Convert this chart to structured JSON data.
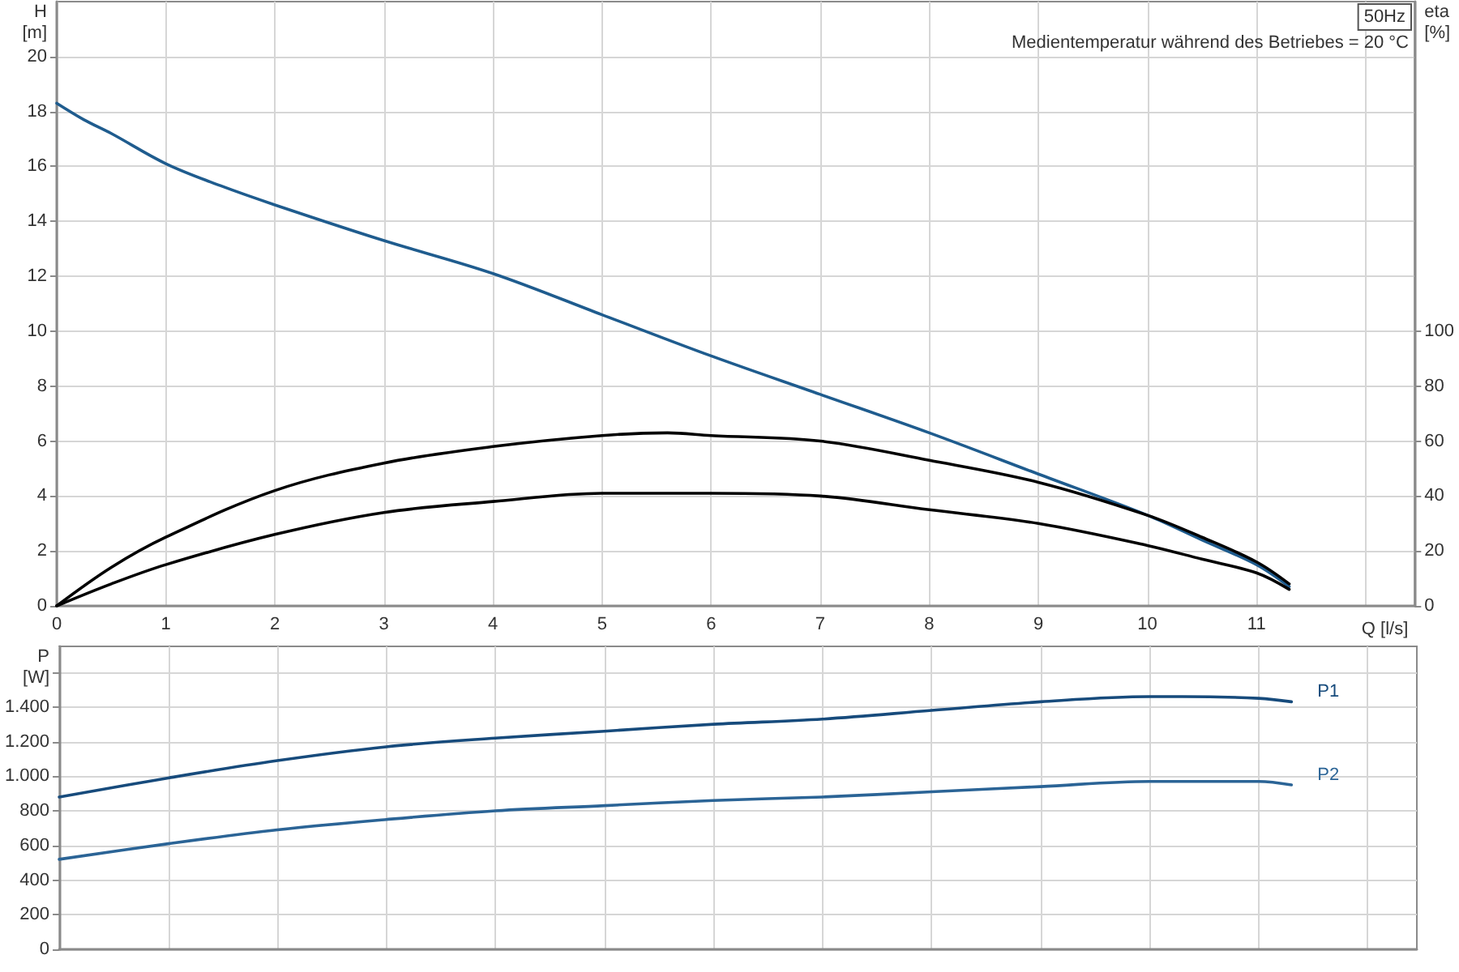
{
  "chart_data": [
    {
      "type": "line",
      "xlabel": "Q [l/s]",
      "ylabel": "H\n[m]",
      "y2label": "eta\n[%]",
      "annotations": [
        "50Hz",
        "Medientemperatur während des Betriebes = 20 °C"
      ],
      "xlim": [
        0,
        12.45
      ],
      "xticks": [
        0,
        1,
        2,
        3,
        4,
        5,
        6,
        7,
        8,
        9,
        10,
        11,
        {
          "value": 12,
          "label": null
        }
      ],
      "ylim": [
        0,
        22
      ],
      "yticks": [
        0,
        2,
        4,
        6,
        8,
        10,
        12,
        14,
        16,
        18,
        20
      ],
      "y2lim": [
        0,
        220
      ],
      "y2ticks": [
        0,
        20,
        40,
        60,
        80,
        100
      ],
      "grid": true,
      "legend": false,
      "marker": "none",
      "series": [
        {
          "color": "#1f5c8e",
          "x": [
            0,
            0.25,
            0.5,
            1,
            1.5,
            2,
            3,
            4,
            5,
            6,
            7,
            8,
            9,
            10,
            10.5,
            11,
            11.3
          ],
          "values": [
            18.3,
            17.7,
            17.2,
            16.1,
            15.3,
            14.6,
            13.3,
            12.1,
            10.6,
            9.1,
            7.7,
            6.3,
            4.8,
            3.3,
            2.4,
            1.5,
            0.7
          ]
        },
        {
          "color": "#000000",
          "axis": "y2",
          "x": [
            0,
            0.5,
            1,
            2,
            3,
            4,
            5,
            5.6,
            6,
            7,
            8,
            9,
            10,
            10.5,
            11,
            11.3
          ],
          "values": [
            0,
            14,
            25,
            42,
            52,
            58,
            62,
            63,
            62,
            60,
            53,
            45,
            33,
            25,
            16,
            8
          ]
        },
        {
          "color": "#000000",
          "axis": "y2",
          "x": [
            0,
            0.5,
            1,
            2,
            3,
            4,
            5,
            5.6,
            6,
            7,
            8,
            9,
            10,
            10.5,
            11,
            11.3
          ],
          "values": [
            0,
            8,
            15,
            26,
            34,
            38,
            41,
            41,
            41,
            40,
            35,
            30,
            22,
            17,
            12,
            6
          ]
        }
      ]
    },
    {
      "type": "line",
      "ylabel": "P\n[W]",
      "tick_labels": "y",
      "xlim": [
        0,
        12.45
      ],
      "xticks": [
        0,
        1,
        2,
        3,
        4,
        5,
        6,
        7,
        8,
        9,
        10,
        11,
        12
      ],
      "ylim": [
        0,
        1750
      ],
      "yticks": [
        0,
        200,
        400,
        600,
        800,
        {
          "value": 1000,
          "label": "1.000"
        },
        {
          "value": 1200,
          "label": "1.200"
        },
        {
          "value": 1400,
          "label": "1.400"
        },
        {
          "value": 1600,
          "label": null
        }
      ],
      "grid": true,
      "legend": false,
      "marker": "none",
      "series": [
        {
          "name": "P1",
          "color": "#174b7c",
          "x": [
            0,
            1,
            2,
            3,
            4,
            5,
            6,
            7,
            8,
            9,
            10,
            10.3,
            11,
            11.3
          ],
          "values": [
            880,
            990,
            1090,
            1170,
            1220,
            1260,
            1300,
            1330,
            1380,
            1430,
            1460,
            1460,
            1450,
            1430
          ]
        },
        {
          "name": "P2",
          "color": "#2b6496",
          "x": [
            0,
            1,
            2,
            3,
            4,
            5,
            6,
            7,
            8,
            9,
            10,
            10.5,
            11,
            11.3
          ],
          "values": [
            520,
            610,
            690,
            750,
            800,
            830,
            860,
            880,
            910,
            940,
            970,
            970,
            970,
            950
          ]
        }
      ]
    }
  ]
}
